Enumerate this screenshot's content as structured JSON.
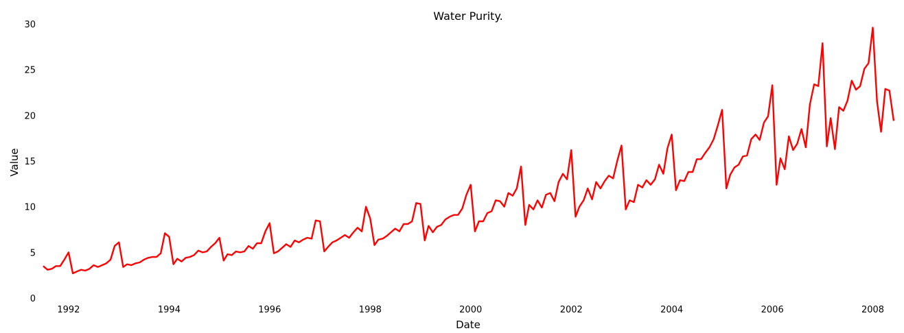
{
  "chart_data": {
    "type": "line",
    "title": "Water Purity.",
    "xlabel": "Date",
    "ylabel": "Value",
    "x_axis": "date",
    "xlim": [
      "1991-07-01",
      "2008-06-01"
    ],
    "ylim": [
      0,
      30
    ],
    "y_ticks": [
      0,
      5,
      10,
      15,
      20,
      25,
      30
    ],
    "x_ticks": [
      {
        "label": "1992",
        "date": "1992-01-01"
      },
      {
        "label": "1994",
        "date": "1994-01-01"
      },
      {
        "label": "1996",
        "date": "1996-01-01"
      },
      {
        "label": "1998",
        "date": "1998-01-01"
      },
      {
        "label": "2000",
        "date": "2000-01-01"
      },
      {
        "label": "2002",
        "date": "2002-01-01"
      },
      {
        "label": "2004",
        "date": "2004-01-01"
      },
      {
        "label": "2006",
        "date": "2006-01-01"
      },
      {
        "label": "2008",
        "date": "2008-01-01"
      }
    ],
    "grid": false,
    "legend": "none",
    "line_color": "#ff0000",
    "series": [
      {
        "x": [
          "1991-07-01",
          "1991-08-01",
          "1991-09-01",
          "1991-10-01",
          "1991-11-01",
          "1991-12-01",
          "1992-01-01",
          "1992-02-01",
          "1992-03-01",
          "1992-04-01",
          "1992-05-01",
          "1992-06-01",
          "1992-07-01",
          "1992-08-01",
          "1992-09-01",
          "1992-10-01",
          "1992-11-01",
          "1992-12-01",
          "1993-01-01",
          "1993-02-01",
          "1993-03-01",
          "1993-04-01",
          "1993-05-01",
          "1993-06-01",
          "1993-07-01",
          "1993-08-01",
          "1993-09-01",
          "1993-10-01",
          "1993-11-01",
          "1993-12-01",
          "1994-01-01",
          "1994-02-01",
          "1994-03-01",
          "1994-04-01",
          "1994-05-01",
          "1994-06-01",
          "1994-07-01",
          "1994-08-01",
          "1994-09-01",
          "1994-10-01",
          "1994-11-01",
          "1994-12-01",
          "1995-01-01",
          "1995-02-01",
          "1995-03-01",
          "1995-04-01",
          "1995-05-01",
          "1995-06-01",
          "1995-07-01",
          "1995-08-01",
          "1995-09-01",
          "1995-10-01",
          "1995-11-01",
          "1995-12-01",
          "1996-01-01",
          "1996-02-01",
          "1996-03-01",
          "1996-04-01",
          "1996-05-01",
          "1996-06-01",
          "1996-07-01",
          "1996-08-01",
          "1996-09-01",
          "1996-10-01",
          "1996-11-01",
          "1996-12-01",
          "1997-01-01",
          "1997-02-01",
          "1997-03-01",
          "1997-04-01",
          "1997-05-01",
          "1997-06-01",
          "1997-07-01",
          "1997-08-01",
          "1997-09-01",
          "1997-10-01",
          "1997-11-01",
          "1997-12-01",
          "1998-01-01",
          "1998-02-01",
          "1998-03-01",
          "1998-04-01",
          "1998-05-01",
          "1998-06-01",
          "1998-07-01",
          "1998-08-01",
          "1998-09-01",
          "1998-10-01",
          "1998-11-01",
          "1998-12-01",
          "1999-01-01",
          "1999-02-01",
          "1999-03-01",
          "1999-04-01",
          "1999-05-01",
          "1999-06-01",
          "1999-07-01",
          "1999-08-01",
          "1999-09-01",
          "1999-10-01",
          "1999-11-01",
          "1999-12-01",
          "2000-01-01",
          "2000-02-01",
          "2000-03-01",
          "2000-04-01",
          "2000-05-01",
          "2000-06-01",
          "2000-07-01",
          "2000-08-01",
          "2000-09-01",
          "2000-10-01",
          "2000-11-01",
          "2000-12-01",
          "2001-01-01",
          "2001-02-01",
          "2001-03-01",
          "2001-04-01",
          "2001-05-01",
          "2001-06-01",
          "2001-07-01",
          "2001-08-01",
          "2001-09-01",
          "2001-10-01",
          "2001-11-01",
          "2001-12-01",
          "2002-01-01",
          "2002-02-01",
          "2002-03-01",
          "2002-04-01",
          "2002-05-01",
          "2002-06-01",
          "2002-07-01",
          "2002-08-01",
          "2002-09-01",
          "2002-10-01",
          "2002-11-01",
          "2002-12-01",
          "2003-01-01",
          "2003-02-01",
          "2003-03-01",
          "2003-04-01",
          "2003-05-01",
          "2003-06-01",
          "2003-07-01",
          "2003-08-01",
          "2003-09-01",
          "2003-10-01",
          "2003-11-01",
          "2003-12-01",
          "2004-01-01",
          "2004-02-01",
          "2004-03-01",
          "2004-04-01",
          "2004-05-01",
          "2004-06-01",
          "2004-07-01",
          "2004-08-01",
          "2004-09-01",
          "2004-10-01",
          "2004-11-01",
          "2004-12-01",
          "2005-01-01",
          "2005-02-01",
          "2005-03-01",
          "2005-04-01",
          "2005-05-01",
          "2005-06-01",
          "2005-07-01",
          "2005-08-01",
          "2005-09-01",
          "2005-10-01",
          "2005-11-01",
          "2005-12-01",
          "2006-01-01",
          "2006-02-01",
          "2006-03-01",
          "2006-04-01",
          "2006-05-01",
          "2006-06-01",
          "2006-07-01",
          "2006-08-01",
          "2006-09-01",
          "2006-10-01",
          "2006-11-01",
          "2006-12-01",
          "2007-01-01",
          "2007-02-01",
          "2007-03-01",
          "2007-04-01",
          "2007-05-01",
          "2007-06-01",
          "2007-07-01",
          "2007-08-01",
          "2007-09-01",
          "2007-10-01",
          "2007-11-01",
          "2007-12-01",
          "2008-01-01",
          "2008-02-01",
          "2008-03-01",
          "2008-04-01",
          "2008-05-01",
          "2008-06-01"
        ],
        "values": [
          3.5,
          3.1,
          3.2,
          3.5,
          3.5,
          4.2,
          5.0,
          2.7,
          2.9,
          3.1,
          3.0,
          3.2,
          3.6,
          3.4,
          3.6,
          3.8,
          4.2,
          5.7,
          6.1,
          3.4,
          3.7,
          3.6,
          3.8,
          3.9,
          4.2,
          4.4,
          4.5,
          4.5,
          4.9,
          7.1,
          6.7,
          3.7,
          4.3,
          4.0,
          4.4,
          4.5,
          4.7,
          5.2,
          5.0,
          5.1,
          5.6,
          6.0,
          6.6,
          4.1,
          4.8,
          4.7,
          5.1,
          5.0,
          5.1,
          5.7,
          5.4,
          6.0,
          6.0,
          7.3,
          8.2,
          4.9,
          5.1,
          5.5,
          5.9,
          5.6,
          6.3,
          6.1,
          6.4,
          6.6,
          6.5,
          8.5,
          8.4,
          5.1,
          5.6,
          6.1,
          6.3,
          6.6,
          6.9,
          6.6,
          7.2,
          7.7,
          7.3,
          10.0,
          8.7,
          5.8,
          6.4,
          6.5,
          6.8,
          7.2,
          7.6,
          7.3,
          8.1,
          8.1,
          8.4,
          10.4,
          10.3,
          6.3,
          7.9,
          7.2,
          7.8,
          8.0,
          8.6,
          8.9,
          9.1,
          9.1,
          9.8,
          11.3,
          12.4,
          7.3,
          8.4,
          8.4,
          9.3,
          9.5,
          10.7,
          10.6,
          10.0,
          11.5,
          11.2,
          12.0,
          14.4,
          8.0,
          10.2,
          9.7,
          10.7,
          9.9,
          11.3,
          11.5,
          10.6,
          12.7,
          13.6,
          13.0,
          16.2,
          8.9,
          10.0,
          10.7,
          12.0,
          10.8,
          12.7,
          12.0,
          12.8,
          13.4,
          13.1,
          15.0,
          16.7,
          9.7,
          10.7,
          10.5,
          12.4,
          12.1,
          12.9,
          12.4,
          13.0,
          14.6,
          13.6,
          16.4,
          17.9,
          11.8,
          12.9,
          12.8,
          13.8,
          13.8,
          15.2,
          15.2,
          15.9,
          16.5,
          17.4,
          18.9,
          20.6,
          12.0,
          13.5,
          14.3,
          14.6,
          15.5,
          15.6,
          17.4,
          17.9,
          17.3,
          19.2,
          19.9,
          23.3,
          12.4,
          15.3,
          14.1,
          17.7,
          16.2,
          16.9,
          18.5,
          16.5,
          21.2,
          23.4,
          23.2,
          27.9,
          16.6,
          19.7,
          16.3,
          20.9,
          20.5,
          21.6,
          23.8,
          22.8,
          23.2,
          25.1,
          25.7,
          29.6,
          21.5,
          18.2,
          22.9,
          22.7,
          19.4
        ]
      }
    ]
  }
}
